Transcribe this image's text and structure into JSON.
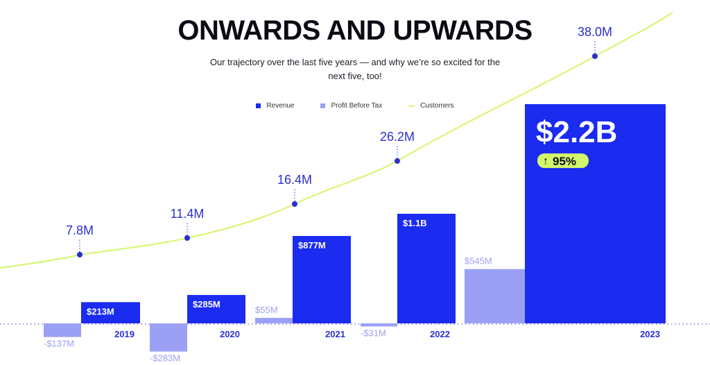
{
  "header": {
    "title": "ONWARDS AND UPWARDS",
    "subtitle": "Our trajectory over the last five years — and why we’re so excited for the next five, too!"
  },
  "legend": [
    {
      "label": "Revenue",
      "color": "#1b2bf0",
      "kind": "square"
    },
    {
      "label": "Profit Before Tax",
      "color": "#9ca0f4",
      "kind": "square"
    },
    {
      "label": "Customers",
      "color": "#d4f76a",
      "kind": "line"
    }
  ],
  "chart_data": {
    "type": "bar",
    "title": "ONWARDS AND UPWARDS",
    "categories": [
      "2019",
      "2020",
      "2021",
      "2022",
      "2023"
    ],
    "series": [
      {
        "name": "Revenue",
        "unit": "$M",
        "values": [
          213,
          285,
          877,
          1100,
          2200
        ],
        "labels": [
          "$213M",
          "$285M",
          "$877M",
          "$1.1B",
          "$2.2B"
        ]
      },
      {
        "name": "Profit Before Tax",
        "unit": "$M",
        "values": [
          -137,
          -283,
          55,
          -31,
          545
        ],
        "labels": [
          "-$137M",
          "-$283M",
          "$55M",
          "-$31M",
          "$545M"
        ]
      },
      {
        "name": "Customers",
        "type": "line",
        "unit": "M",
        "values": [
          7.8,
          11.4,
          16.4,
          26.2,
          38.0
        ],
        "labels": [
          "7.8M",
          "11.4M",
          "16.4M",
          "26.2M",
          "38.0M"
        ]
      }
    ],
    "annotation": {
      "badge": "95%",
      "badge_icon": "arrow-up-icon",
      "text": "$2.2B"
    },
    "grid": false,
    "legend_position": "top-center"
  }
}
